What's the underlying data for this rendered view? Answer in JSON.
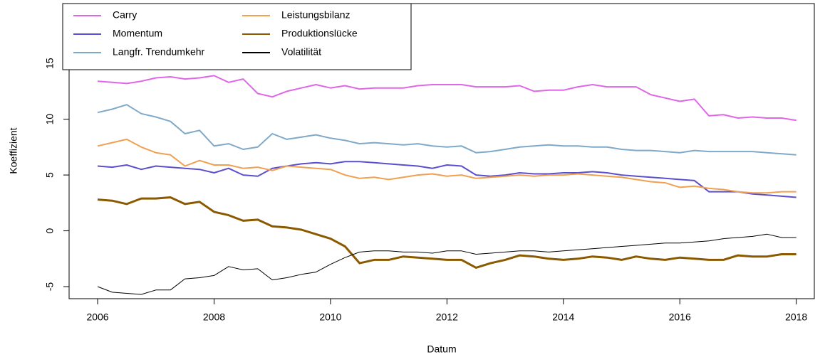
{
  "chart_data": {
    "type": "line",
    "x_label": "Datum",
    "y_label": "Koeffizient",
    "x": [
      2006,
      2006.25,
      2006.5,
      2006.75,
      2007,
      2007.25,
      2007.5,
      2007.75,
      2008,
      2008.25,
      2008.5,
      2008.75,
      2009,
      2009.25,
      2009.5,
      2009.75,
      2010,
      2010.25,
      2010.5,
      2010.75,
      2011,
      2011.25,
      2011.5,
      2011.75,
      2012,
      2012.25,
      2012.5,
      2012.75,
      2013,
      2013.25,
      2013.5,
      2013.75,
      2014,
      2014.25,
      2014.5,
      2014.75,
      2015,
      2015.25,
      2015.5,
      2015.75,
      2016,
      2016.25,
      2016.5,
      2016.75,
      2017,
      2017.25,
      2017.5,
      2017.75,
      2018
    ],
    "series": [
      {
        "name": "Carry",
        "color": "#e066e8",
        "values": [
          13.4,
          13.3,
          13.2,
          13.4,
          13.7,
          13.8,
          13.6,
          13.7,
          13.9,
          13.3,
          13.6,
          12.3,
          12.0,
          12.5,
          12.8,
          13.1,
          12.8,
          13.0,
          12.7,
          12.8,
          12.8,
          12.8,
          13.0,
          13.1,
          13.1,
          13.1,
          12.9,
          12.9,
          12.9,
          13.0,
          12.5,
          12.6,
          12.6,
          12.9,
          13.1,
          12.9,
          12.9,
          12.9,
          12.2,
          11.9,
          11.6,
          11.8,
          10.3,
          10.4,
          10.1,
          10.2,
          10.1,
          10.1,
          9.9
        ]
      },
      {
        "name": "Momentum",
        "color": "#5a4fcf",
        "values": [
          5.8,
          5.7,
          5.9,
          5.5,
          5.8,
          5.7,
          5.6,
          5.5,
          5.2,
          5.6,
          5.0,
          4.9,
          5.6,
          5.8,
          6.0,
          6.1,
          6.0,
          6.2,
          6.2,
          6.1,
          6.0,
          5.9,
          5.8,
          5.6,
          5.9,
          5.8,
          5.0,
          4.9,
          5.0,
          5.2,
          5.1,
          5.1,
          5.2,
          5.2,
          5.3,
          5.2,
          5.0,
          4.9,
          4.8,
          4.7,
          4.6,
          4.5,
          3.5,
          3.5,
          3.5,
          3.3,
          3.2,
          3.1,
          3.0
        ]
      },
      {
        "name": "Langfr. Trendumkehr",
        "color": "#7fa9c9",
        "values": [
          10.6,
          10.9,
          11.3,
          10.5,
          10.2,
          9.8,
          8.7,
          9.0,
          7.6,
          7.8,
          7.3,
          7.5,
          8.7,
          8.2,
          8.4,
          8.6,
          8.3,
          8.1,
          7.8,
          7.9,
          7.8,
          7.7,
          7.8,
          7.6,
          7.5,
          7.6,
          7.0,
          7.1,
          7.3,
          7.5,
          7.6,
          7.7,
          7.6,
          7.6,
          7.5,
          7.5,
          7.3,
          7.2,
          7.2,
          7.1,
          7.0,
          7.2,
          7.1,
          7.1,
          7.1,
          7.1,
          7.0,
          6.9,
          6.8
        ]
      },
      {
        "name": "Leistungsbilanz",
        "color": "#f0a050",
        "values": [
          7.6,
          7.9,
          8.2,
          7.5,
          7.0,
          6.8,
          5.8,
          6.3,
          5.9,
          5.9,
          5.6,
          5.7,
          5.4,
          5.8,
          5.7,
          5.6,
          5.5,
          5.0,
          4.7,
          4.8,
          4.6,
          4.8,
          5.0,
          5.1,
          4.9,
          5.0,
          4.7,
          4.8,
          4.9,
          5.0,
          4.9,
          5.0,
          5.0,
          5.1,
          5.0,
          4.9,
          4.8,
          4.6,
          4.4,
          4.3,
          3.9,
          4.0,
          3.8,
          3.7,
          3.5,
          3.4,
          3.4,
          3.5,
          3.5
        ]
      },
      {
        "name": "Produktionslücke",
        "color": "#8b5a00",
        "values": [
          2.8,
          2.7,
          2.4,
          2.9,
          2.9,
          3.0,
          2.4,
          2.6,
          1.7,
          1.4,
          0.9,
          1.0,
          0.4,
          0.3,
          0.1,
          -0.3,
          -0.7,
          -1.4,
          -2.9,
          -2.6,
          -2.6,
          -2.3,
          -2.4,
          -2.5,
          -2.6,
          -2.6,
          -3.3,
          -2.9,
          -2.6,
          -2.2,
          -2.3,
          -2.5,
          -2.6,
          -2.5,
          -2.3,
          -2.4,
          -2.6,
          -2.3,
          -2.5,
          -2.6,
          -2.4,
          -2.5,
          -2.6,
          -2.6,
          -2.2,
          -2.3,
          -2.3,
          -2.1,
          -2.1
        ]
      },
      {
        "name": "Volatilität",
        "color": "#000000",
        "values": [
          -5.0,
          -5.5,
          -5.6,
          -5.7,
          -5.3,
          -5.3,
          -4.3,
          -4.2,
          -4.0,
          -3.2,
          -3.5,
          -3.4,
          -4.4,
          -4.2,
          -3.9,
          -3.7,
          -3.0,
          -2.4,
          -1.9,
          -1.8,
          -1.8,
          -1.9,
          -1.9,
          -2.0,
          -1.8,
          -1.8,
          -2.1,
          -2.0,
          -1.9,
          -1.8,
          -1.8,
          -1.9,
          -1.8,
          -1.7,
          -1.6,
          -1.5,
          -1.4,
          -1.3,
          -1.2,
          -1.1,
          -1.1,
          -1.0,
          -0.9,
          -0.7,
          -0.6,
          -0.5,
          -0.3,
          -0.6,
          -0.6
        ]
      }
    ],
    "xlim": [
      2005.51,
      2018.31
    ],
    "xticks": [
      2006,
      2008,
      2010,
      2012,
      2014,
      2016,
      2018
    ],
    "ylim": [
      -6.08,
      20.36
    ],
    "yticks": [
      -5,
      0,
      5,
      10,
      15
    ],
    "legend": "top-left",
    "grid": false
  }
}
